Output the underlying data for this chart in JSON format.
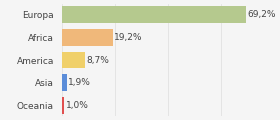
{
  "categories": [
    "Europa",
    "Africa",
    "America",
    "Asia",
    "Oceania"
  ],
  "values": [
    69.2,
    19.2,
    8.7,
    1.9,
    1.0
  ],
  "labels": [
    "69,2%",
    "19,2%",
    "8,7%",
    "1,9%",
    "1,0%"
  ],
  "bar_colors": [
    "#b5c98e",
    "#f0b87a",
    "#f0d06a",
    "#5b8dd9",
    "#e05050"
  ],
  "background_color": "#f5f5f5",
  "xlim": [
    0,
    80
  ],
  "bar_height": 0.75,
  "label_fontsize": 6.5,
  "tick_fontsize": 6.5,
  "grid_color": "#dddddd"
}
